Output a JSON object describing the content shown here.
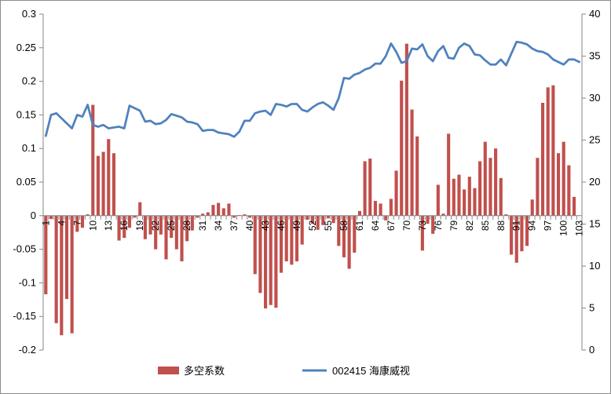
{
  "chart_data": {
    "type": "bar+line",
    "title": "",
    "categories": [
      1,
      2,
      3,
      4,
      5,
      6,
      7,
      8,
      9,
      10,
      11,
      12,
      13,
      14,
      15,
      16,
      17,
      18,
      19,
      20,
      21,
      22,
      23,
      24,
      25,
      26,
      27,
      28,
      29,
      30,
      31,
      32,
      33,
      34,
      35,
      36,
      37,
      38,
      39,
      40,
      41,
      42,
      43,
      44,
      45,
      46,
      47,
      48,
      49,
      50,
      51,
      52,
      53,
      54,
      55,
      56,
      57,
      58,
      59,
      60,
      61,
      62,
      63,
      64,
      65,
      66,
      67,
      68,
      69,
      70,
      71,
      72,
      73,
      74,
      75,
      76,
      77,
      78,
      79,
      80,
      81,
      82,
      83,
      84,
      85,
      86,
      87,
      88,
      89,
      90,
      91,
      92,
      93,
      94,
      95,
      96,
      97,
      98,
      99,
      100,
      101,
      102,
      103
    ],
    "x_tick_labels": [
      "1",
      "4",
      "7",
      "10",
      "13",
      "16",
      "19",
      "22",
      "25",
      "28",
      "31",
      "34",
      "37",
      "40",
      "43",
      "46",
      "49",
      "52",
      "55",
      "58",
      "61",
      "64",
      "67",
      "70",
      "73",
      "76",
      "79",
      "82",
      "85",
      "88",
      "91",
      "94",
      "97",
      "100",
      "103"
    ],
    "y_left": {
      "min": -0.2,
      "max": 0.3,
      "ticks": [
        "0.3",
        "0.25",
        "0.2",
        "0.15",
        "0.1",
        "0.05",
        "0",
        "-0.05",
        "-0.1",
        "-0.15",
        "-0.2"
      ]
    },
    "y_right": {
      "min": 0,
      "max": 40,
      "ticks": [
        "40",
        "35",
        "30",
        "25",
        "20",
        "15",
        "10",
        "5",
        "0"
      ]
    },
    "series": [
      {
        "name": "多空系数",
        "type": "bar",
        "axis": "left",
        "color": "#C0504D",
        "values": [
          -0.117,
          -0.005,
          -0.16,
          -0.178,
          -0.124,
          -0.175,
          -0.024,
          -0.018,
          0.002,
          0.165,
          0.089,
          0.095,
          0.114,
          0.093,
          -0.037,
          -0.033,
          -0.018,
          -0.003,
          0.02,
          -0.035,
          -0.028,
          -0.05,
          -0.028,
          -0.065,
          -0.033,
          -0.05,
          -0.068,
          -0.038,
          -0.022,
          -0.003,
          0.003,
          0.005,
          0.016,
          0.019,
          0.011,
          0.018,
          -0.003,
          0.001,
          0.002,
          -0.003,
          -0.087,
          -0.115,
          -0.138,
          -0.133,
          -0.137,
          -0.085,
          -0.068,
          -0.073,
          -0.068,
          -0.043,
          -0.006,
          -0.012,
          -0.021,
          -0.014,
          -0.004,
          -0.011,
          -0.045,
          -0.062,
          -0.079,
          -0.055,
          0.007,
          0.081,
          0.085,
          0.022,
          0.018,
          -0.007,
          0.025,
          0.067,
          0.201,
          0.256,
          0.158,
          0.118,
          -0.052,
          -0.012,
          -0.027,
          0.046,
          0.003,
          0.122,
          0.055,
          0.061,
          0.039,
          0.058,
          0.041,
          0.081,
          0.11,
          0.086,
          0.1,
          0.056,
          0.002,
          -0.058,
          -0.07,
          -0.053,
          -0.045,
          0.024,
          0.086,
          0.168,
          0.191,
          0.194,
          0.093,
          0.11,
          0.075,
          0.028,
          0
        ]
      },
      {
        "name": "002415 海康威视",
        "type": "line",
        "axis": "right",
        "color": "#4F81BD",
        "values": [
          25.5,
          28.0,
          28.2,
          27.6,
          27.0,
          26.4,
          28.0,
          27.8,
          29.2,
          26.8,
          26.6,
          26.8,
          26.4,
          26.5,
          26.6,
          26.4,
          29.1,
          28.8,
          28.5,
          27.2,
          27.3,
          26.9,
          27.0,
          27.4,
          28.1,
          27.9,
          27.7,
          27.2,
          27.1,
          26.9,
          26.1,
          26.2,
          26.2,
          25.9,
          25.8,
          25.7,
          25.4,
          26.0,
          27.3,
          27.3,
          28.2,
          28.4,
          28.5,
          28.0,
          29.3,
          29.2,
          29.0,
          29.3,
          29.3,
          28.6,
          28.4,
          28.9,
          29.3,
          29.5,
          29.1,
          28.6,
          30.0,
          32.4,
          32.3,
          32.8,
          33.0,
          33.4,
          33.6,
          34.1,
          34.1,
          35.0,
          36.5,
          35.5,
          34.2,
          34.4,
          35.9,
          35.8,
          36.4,
          35.0,
          34.4,
          35.6,
          36.2,
          34.8,
          34.7,
          36.0,
          36.5,
          36.2,
          35.2,
          35.1,
          34.5,
          34.0,
          34.0,
          34.6,
          33.9,
          35.3,
          36.7,
          36.6,
          36.4,
          35.9,
          35.6,
          35.5,
          35.2,
          34.6,
          34.3,
          34.0,
          34.6,
          34.6,
          34.3
        ]
      }
    ],
    "legend_position": "bottom",
    "grid": false
  }
}
